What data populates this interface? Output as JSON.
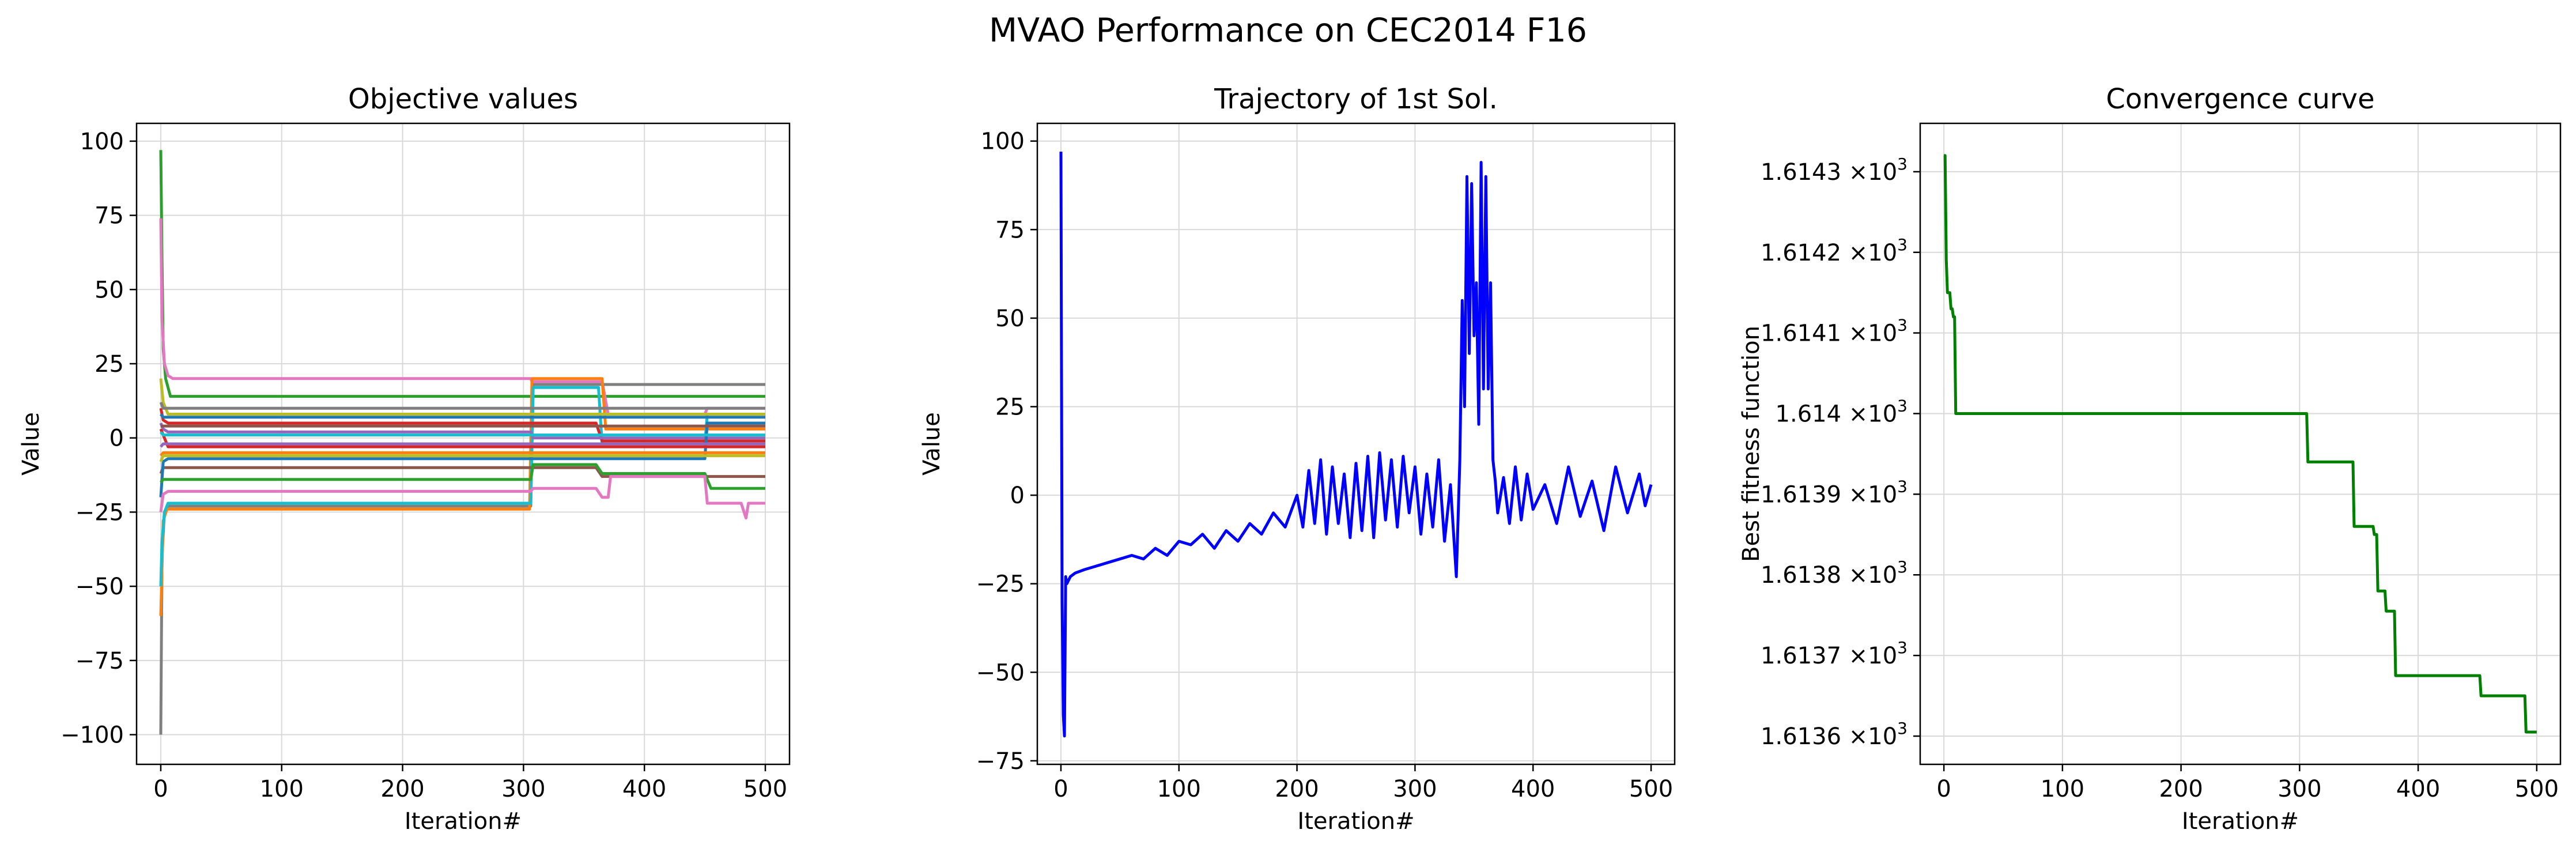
{
  "figure": {
    "title": "MVAO Performance on CEC2014 F16"
  },
  "colors": {
    "tab10": [
      "#1f77b4",
      "#ff7f0e",
      "#2ca02c",
      "#d62728",
      "#9467bd",
      "#8c564b",
      "#e377c2",
      "#7f7f7f",
      "#bcbd22",
      "#17becf"
    ],
    "trajectory": "#0000ff",
    "convergence": "#008000"
  },
  "chart_data": [
    {
      "type": "line",
      "title": "Objective values",
      "xlabel": "Iteration#",
      "ylabel": "Value",
      "xlim": [
        -20,
        520
      ],
      "ylim": [
        -110,
        106
      ],
      "xticks": [
        0,
        100,
        200,
        300,
        400,
        500
      ],
      "yticks": [
        -100,
        -75,
        -50,
        -25,
        0,
        25,
        50,
        75,
        100
      ],
      "ytick_labels": [
        "−100",
        "−75",
        "−50",
        "−25",
        "0",
        "25",
        "50",
        "75",
        "100"
      ],
      "grid": true,
      "series": [
        {
          "color": "#2ca02c",
          "x": [
            0,
            1,
            2,
            4,
            8,
            500
          ],
          "values": [
            97,
            60,
            30,
            20,
            14,
            14
          ]
        },
        {
          "color": "#e377c2",
          "x": [
            0,
            1,
            3,
            6,
            10,
            306,
            307,
            365,
            370,
            450,
            452,
            500
          ],
          "values": [
            74,
            40,
            25,
            21,
            20,
            20,
            19,
            19,
            8,
            8,
            10,
            10
          ]
        },
        {
          "color": "#7f7f7f",
          "x": [
            0,
            1,
            3,
            6,
            306,
            308,
            500
          ],
          "values": [
            -100,
            -40,
            -25,
            -23,
            -23,
            18,
            18
          ]
        },
        {
          "color": "#ff7f0e",
          "x": [
            0,
            2,
            5,
            10,
            305,
            307,
            365,
            368,
            500
          ],
          "values": [
            -60,
            -28,
            -24,
            -24,
            -24,
            20,
            20,
            3,
            3
          ]
        },
        {
          "color": "#17becf",
          "x": [
            0,
            1,
            3,
            6,
            306,
            308,
            362,
            365,
            450,
            452,
            500
          ],
          "values": [
            -50,
            -35,
            -25,
            -22,
            -22,
            17,
            17,
            -2,
            -2,
            8,
            8
          ]
        },
        {
          "color": "#d62728",
          "x": [
            0,
            2,
            6,
            360,
            365,
            500
          ],
          "values": [
            10,
            6,
            5,
            5,
            -1,
            -1
          ]
        },
        {
          "color": "#9467bd",
          "x": [
            0,
            2,
            6,
            306,
            308,
            500
          ],
          "values": [
            5,
            3,
            2,
            2,
            0,
            0
          ]
        },
        {
          "color": "#8c564b",
          "x": [
            0,
            2,
            6,
            360,
            365,
            500
          ],
          "values": [
            -12,
            -10,
            -10,
            -10,
            -13,
            -13
          ]
        },
        {
          "color": "#bcbd22",
          "x": [
            0,
            2,
            6,
            500
          ],
          "values": [
            20,
            12,
            8,
            8
          ]
        },
        {
          "color": "#1f77b4",
          "x": [
            0,
            2,
            6,
            450,
            452,
            500
          ],
          "values": [
            -20,
            -8,
            -7,
            -7,
            5,
            5
          ]
        },
        {
          "color": "#2ca02c",
          "x": [
            0,
            2,
            6,
            306,
            308,
            360,
            365,
            450,
            455,
            500
          ],
          "values": [
            -15,
            -14,
            -14,
            -14,
            -9,
            -9,
            -12,
            -12,
            -17,
            -17
          ]
        },
        {
          "color": "#e377c2",
          "x": [
            0,
            2,
            6,
            306,
            308,
            360,
            365,
            370,
            372,
            450,
            452,
            480,
            484,
            486,
            500
          ],
          "values": [
            -25,
            -19,
            -18,
            -18,
            -17,
            -17,
            -20,
            -20,
            -13,
            -13,
            -22,
            -22,
            -27,
            -22,
            -22
          ]
        },
        {
          "color": "#d62728",
          "x": [
            0,
            2,
            6,
            500
          ],
          "values": [
            3,
            1,
            -3,
            -3
          ]
        },
        {
          "color": "#7f7f7f",
          "x": [
            0,
            2,
            6,
            500
          ],
          "values": [
            12,
            10,
            10,
            10
          ]
        },
        {
          "color": "#ff7f0e",
          "x": [
            0,
            2,
            6,
            500
          ],
          "values": [
            -6,
            -5,
            -5,
            -5
          ]
        },
        {
          "color": "#1f77b4",
          "x": [
            0,
            2,
            6,
            500
          ],
          "values": [
            8,
            7,
            7,
            7
          ]
        },
        {
          "color": "#9467bd",
          "x": [
            0,
            2,
            6,
            500
          ],
          "values": [
            -3,
            -2,
            -2,
            -2
          ]
        },
        {
          "color": "#bcbd22",
          "x": [
            0,
            2,
            6,
            500
          ],
          "values": [
            -8,
            -6,
            -6,
            -6
          ]
        },
        {
          "color": "#17becf",
          "x": [
            0,
            2,
            6,
            500
          ],
          "values": [
            2,
            1,
            1,
            1
          ]
        },
        {
          "color": "#8c564b",
          "x": [
            0,
            2,
            6,
            500
          ],
          "values": [
            4,
            4,
            4,
            4
          ]
        }
      ]
    },
    {
      "type": "line",
      "title": "Trajectory of 1st Sol.",
      "xlabel": "Iteration#",
      "ylabel": "Value",
      "xlim": [
        -20,
        520
      ],
      "ylim": [
        -76,
        105
      ],
      "xticks": [
        0,
        100,
        200,
        300,
        400,
        500
      ],
      "yticks": [
        -75,
        -50,
        -25,
        0,
        25,
        50,
        75,
        100
      ],
      "ytick_labels": [
        "−75",
        "−50",
        "−25",
        "0",
        "25",
        "50",
        "75",
        "100"
      ],
      "grid": true,
      "series": [
        {
          "color": "#0000ff",
          "x": [
            0,
            1,
            2,
            3,
            4,
            5,
            8,
            12,
            20,
            30,
            40,
            50,
            60,
            70,
            80,
            90,
            100,
            110,
            120,
            130,
            140,
            150,
            160,
            170,
            180,
            190,
            200,
            205,
            210,
            215,
            220,
            225,
            230,
            235,
            240,
            245,
            250,
            255,
            260,
            265,
            270,
            275,
            280,
            285,
            290,
            295,
            300,
            305,
            310,
            315,
            320,
            325,
            330,
            335,
            338,
            340,
            342,
            344,
            346,
            348,
            350,
            352,
            354,
            356,
            358,
            360,
            362,
            364,
            366,
            368,
            370,
            375,
            380,
            385,
            390,
            395,
            400,
            410,
            420,
            430,
            440,
            450,
            460,
            470,
            480,
            490,
            495,
            500
          ],
          "values": [
            97,
            -30,
            -62,
            -68,
            -23,
            -25,
            -23,
            -22,
            -21,
            -20,
            -19,
            -18,
            -17,
            -18,
            -15,
            -17,
            -13,
            -14,
            -11,
            -15,
            -10,
            -13,
            -8,
            -11,
            -5,
            -9,
            0,
            -9,
            7,
            -8,
            10,
            -11,
            8,
            -8,
            6,
            -12,
            9,
            -10,
            11,
            -12,
            12,
            -7,
            10,
            -9,
            11,
            -5,
            8,
            -11,
            6,
            -9,
            10,
            -13,
            3,
            -23,
            10,
            55,
            25,
            90,
            40,
            88,
            45,
            60,
            20,
            94,
            30,
            90,
            30,
            60,
            10,
            4,
            -5,
            5,
            -8,
            8,
            -7,
            6,
            -4,
            3,
            -8,
            8,
            -6,
            4,
            -10,
            8,
            -5,
            6,
            -3,
            3
          ]
        }
      ]
    },
    {
      "type": "line",
      "title": "Convergence curve",
      "xlabel": "Iteration#",
      "ylabel": "Best fitness function",
      "yscale": "log",
      "xlim": [
        -20,
        520
      ],
      "ylim": [
        1613.565,
        1614.36
      ],
      "xticks": [
        0,
        100,
        200,
        300,
        400,
        500
      ],
      "yticks": [
        1613.6,
        1613.7,
        1613.8,
        1613.9,
        1614.0,
        1614.1,
        1614.2,
        1614.3
      ],
      "ytick_labels": [
        "1.6136",
        "1.6137",
        "1.6138",
        "1.6139",
        "1.614",
        "1.6141",
        "1.6142",
        "1.6143"
      ],
      "ytick_suffix": "×10",
      "ytick_exponent": "3",
      "grid": true,
      "series": [
        {
          "color": "#008000",
          "x": [
            0,
            1,
            2,
            3,
            4,
            5,
            6,
            7,
            8,
            9,
            10,
            11,
            306,
            307,
            308,
            345,
            346,
            362,
            363,
            365,
            366,
            372,
            373,
            380,
            381,
            452,
            453,
            490,
            491,
            500
          ],
          "values": [
            1614.32,
            1614.32,
            1614.19,
            1614.15,
            1614.15,
            1614.15,
            1614.13,
            1614.13,
            1614.12,
            1614.12,
            1614.0,
            1614.0,
            1614.0,
            1613.94,
            1613.94,
            1613.94,
            1613.86,
            1613.86,
            1613.85,
            1613.85,
            1613.78,
            1613.78,
            1613.755,
            1613.755,
            1613.675,
            1613.675,
            1613.65,
            1613.65,
            1613.605,
            1613.605
          ]
        }
      ]
    }
  ]
}
